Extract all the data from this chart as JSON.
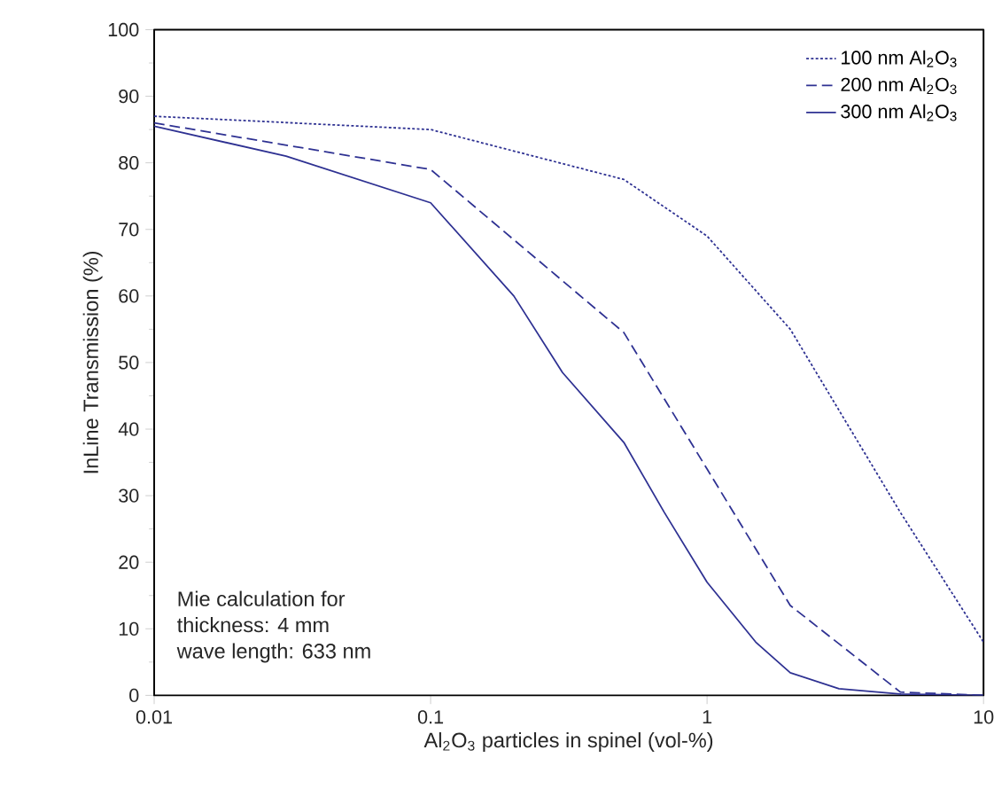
{
  "chart_data": {
    "type": "line",
    "xlabel": "Al$_{2}$O$_{3}$  particles in  spinel  (vol-%)",
    "ylabel": "InLine Transmission (%)",
    "log": "x",
    "xlim": [
      0.01,
      10
    ],
    "xticks": [
      0.01,
      0.1,
      1,
      10
    ],
    "ylim": [
      0,
      100
    ],
    "yticks": [
      0,
      10,
      20,
      30,
      40,
      50,
      60,
      70,
      80,
      90,
      100
    ],
    "legend": "top right",
    "marker": "none",
    "series": [
      {
        "name": "100 nm Al$_{2}$O$_{3}$",
        "color": "#2e3192",
        "line_style": "dotted",
        "x": [
          0.01,
          0.1,
          0.5,
          1,
          2,
          5,
          10
        ],
        "values": [
          87,
          85,
          77.5,
          69,
          55,
          27.5,
          8
        ]
      },
      {
        "name": "200 nm Al$_{2}$O$_{3}$",
        "color": "#2e3192",
        "line_style": "dashed",
        "x": [
          0.01,
          0.1,
          0.5,
          1,
          2,
          5,
          10
        ],
        "values": [
          86,
          79,
          54.5,
          34,
          13.5,
          0.5,
          0
        ]
      },
      {
        "name": "300 nm Al$_{2}$O$_{3}$",
        "color": "#2e3192",
        "line_style": "solid",
        "x": [
          0.01,
          0.03,
          0.1,
          0.2,
          0.3,
          0.5,
          0.7,
          1,
          1.5,
          2,
          3,
          5,
          10
        ],
        "values": [
          85.5,
          81,
          74,
          60,
          48.5,
          38,
          27.5,
          17,
          8,
          3.4,
          1,
          0.2,
          0
        ]
      }
    ],
    "annotations": [
      "Mie calculation  for",
      "thickness:        4 mm",
      "wave length: 633 nm"
    ]
  }
}
